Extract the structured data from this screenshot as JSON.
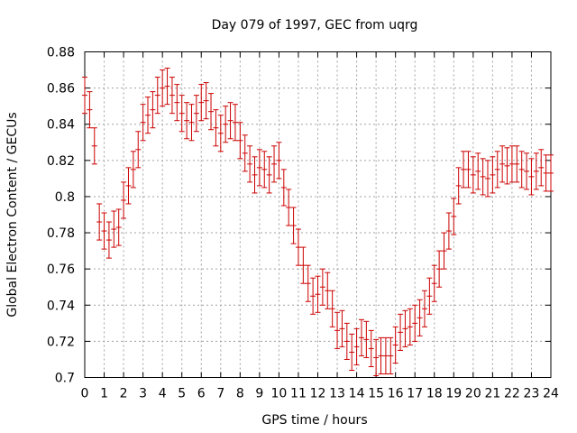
{
  "chart_data": {
    "type": "scatter",
    "title": "Day 079 of 1997, GEC from uqrg",
    "xlabel": "GPS time / hours",
    "ylabel": "Global Electron Content / GECUs",
    "xlim": [
      0,
      24
    ],
    "ylim": [
      0.7,
      0.88
    ],
    "xticks": [
      "0",
      "1",
      "2",
      "3",
      "4",
      "5",
      "6",
      "7",
      "8",
      "9",
      "10",
      "11",
      "12",
      "13",
      "14",
      "15",
      "16",
      "17",
      "18",
      "19",
      "20",
      "21",
      "22",
      "23",
      "24"
    ],
    "yticks": [
      "0.7",
      "0.72",
      "0.74",
      "0.76",
      "0.78",
      "0.8",
      "0.82",
      "0.84",
      "0.86",
      "0.88"
    ],
    "grid": true,
    "series_color": "#cc0000",
    "error": 0.01,
    "x": [
      0.0,
      0.25,
      0.5,
      0.75,
      1.0,
      1.25,
      1.5,
      1.75,
      2.0,
      2.25,
      2.5,
      2.75,
      3.0,
      3.25,
      3.5,
      3.75,
      4.0,
      4.25,
      4.5,
      4.75,
      5.0,
      5.25,
      5.5,
      5.75,
      6.0,
      6.25,
      6.5,
      6.75,
      7.0,
      7.25,
      7.5,
      7.75,
      8.0,
      8.25,
      8.5,
      8.75,
      9.0,
      9.25,
      9.5,
      9.75,
      10.0,
      10.25,
      10.5,
      10.75,
      11.0,
      11.25,
      11.5,
      11.75,
      12.0,
      12.25,
      12.5,
      12.75,
      13.0,
      13.25,
      13.5,
      13.75,
      14.0,
      14.25,
      14.5,
      14.75,
      15.0,
      15.25,
      15.5,
      15.75,
      16.0,
      16.25,
      16.5,
      16.75,
      17.0,
      17.25,
      17.5,
      17.75,
      18.0,
      18.25,
      18.5,
      18.75,
      19.0,
      19.25,
      19.5,
      19.75,
      20.0,
      20.25,
      20.5,
      20.75,
      21.0,
      21.25,
      21.5,
      21.75,
      22.0,
      22.25,
      22.5,
      22.75,
      23.0,
      23.25,
      23.5,
      23.75,
      24.0
    ],
    "y": [
      0.856,
      0.848,
      0.828,
      0.786,
      0.781,
      0.776,
      0.782,
      0.783,
      0.798,
      0.806,
      0.815,
      0.826,
      0.841,
      0.845,
      0.848,
      0.856,
      0.86,
      0.861,
      0.856,
      0.852,
      0.846,
      0.842,
      0.841,
      0.846,
      0.852,
      0.853,
      0.847,
      0.838,
      0.835,
      0.84,
      0.842,
      0.841,
      0.831,
      0.824,
      0.818,
      0.812,
      0.816,
      0.815,
      0.812,
      0.818,
      0.82,
      0.805,
      0.794,
      0.784,
      0.772,
      0.762,
      0.752,
      0.745,
      0.746,
      0.75,
      0.748,
      0.738,
      0.726,
      0.727,
      0.72,
      0.714,
      0.717,
      0.722,
      0.721,
      0.716,
      0.711,
      0.712,
      0.712,
      0.712,
      0.718,
      0.725,
      0.727,
      0.728,
      0.73,
      0.733,
      0.738,
      0.745,
      0.752,
      0.76,
      0.77,
      0.781,
      0.789,
      0.806,
      0.815,
      0.815,
      0.812,
      0.814,
      0.811,
      0.81,
      0.812,
      0.815,
      0.818,
      0.817,
      0.818,
      0.818,
      0.815,
      0.814,
      0.811,
      0.814,
      0.816,
      0.813,
      0.813
    ]
  }
}
